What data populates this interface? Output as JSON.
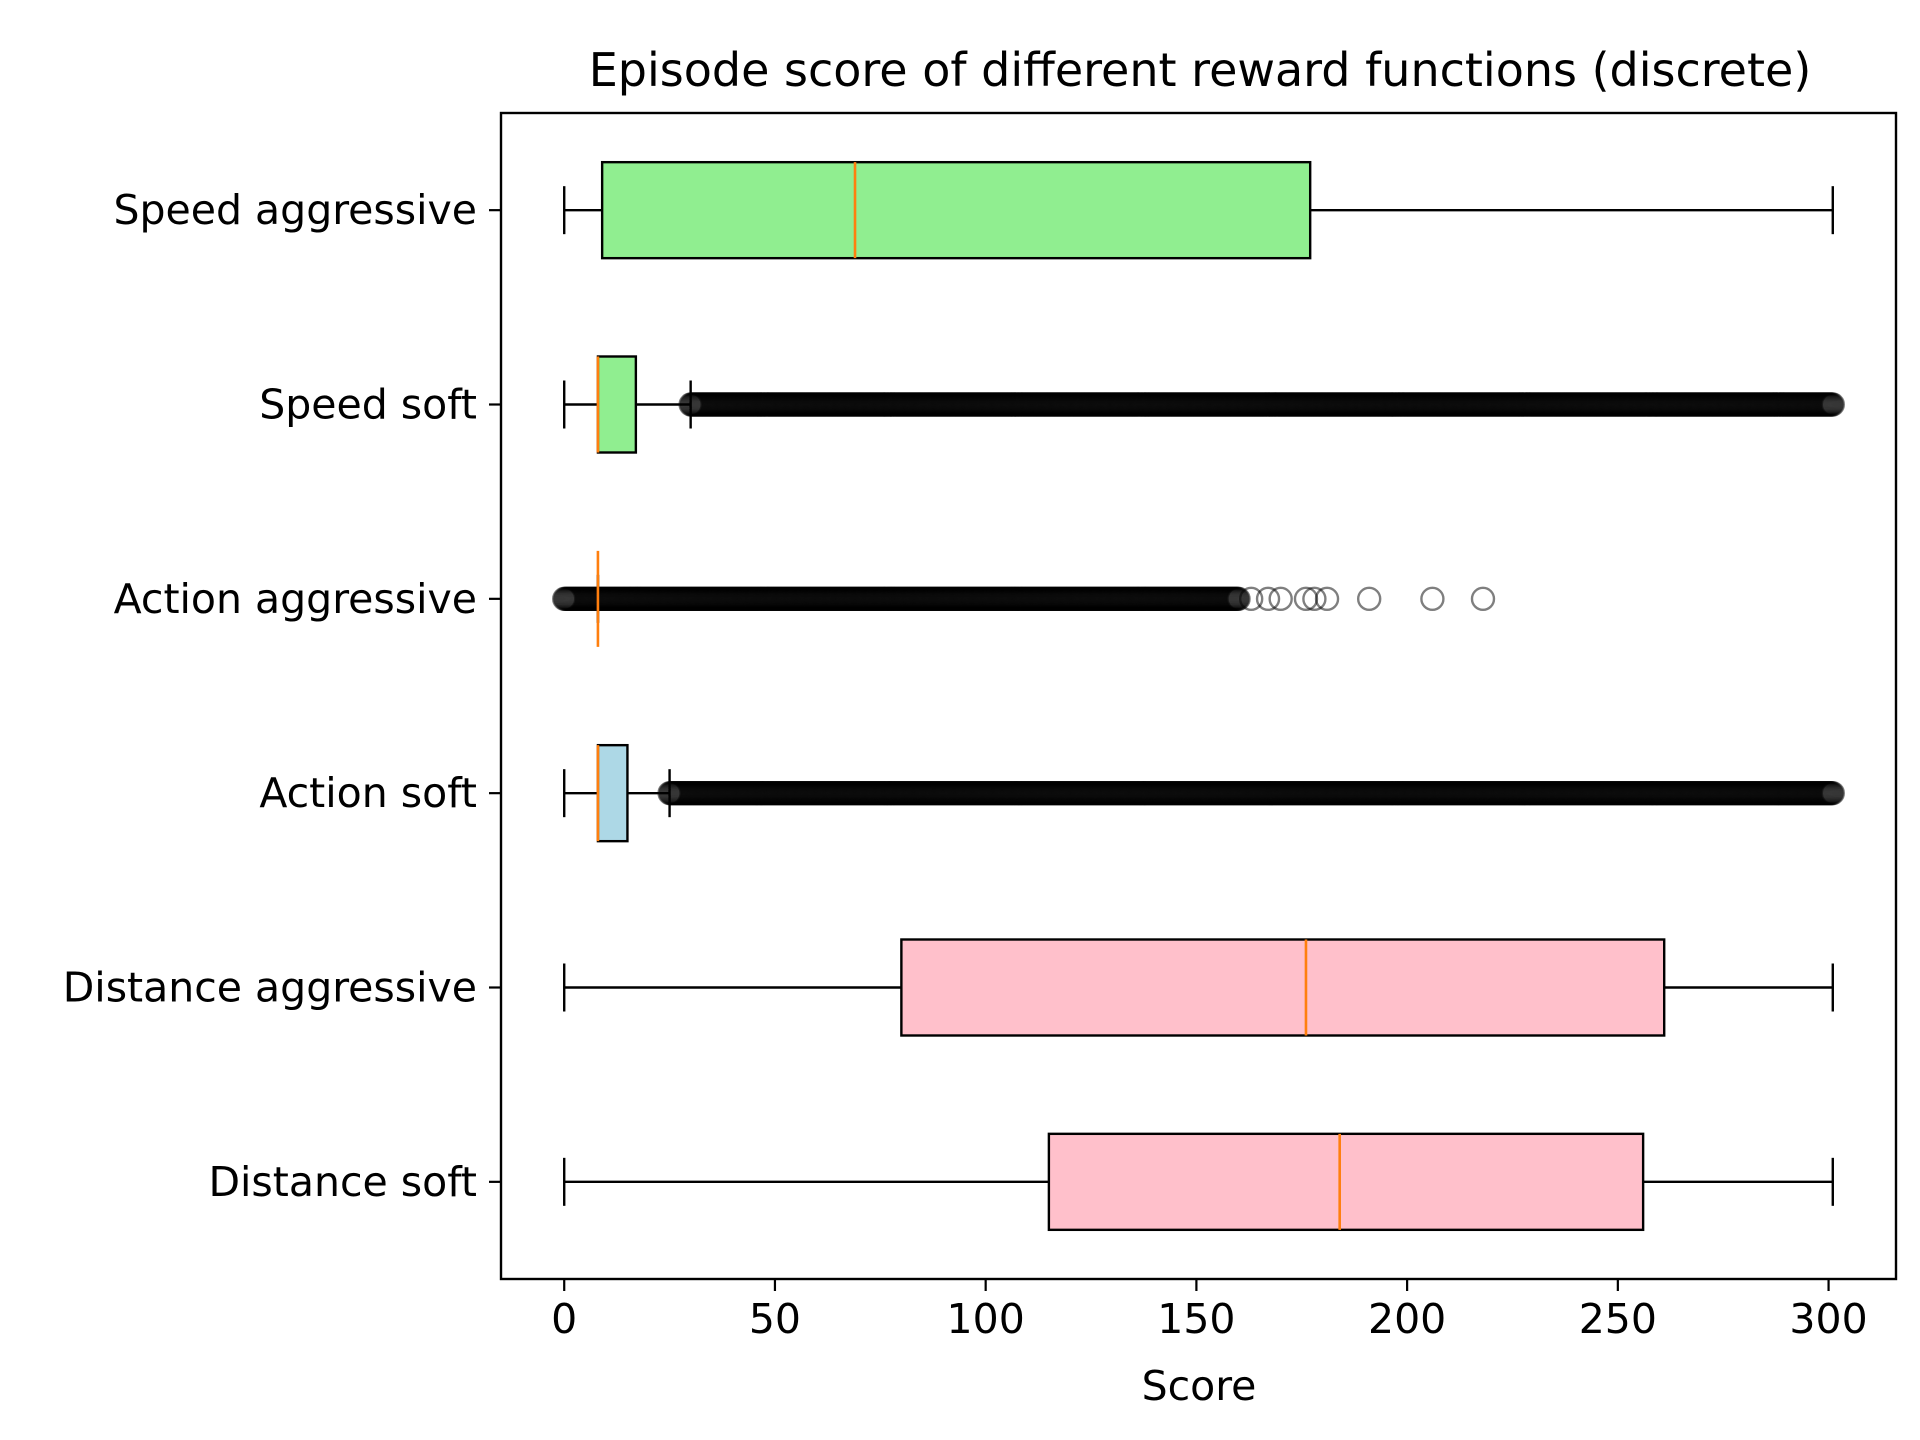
{
  "chart_data": {
    "type": "boxplot",
    "orientation": "horizontal",
    "title": "Episode score of different reward functions (discrete)",
    "xlabel": "Score",
    "ylabel": "",
    "xlim": [
      -15,
      316
    ],
    "xticks": [
      0,
      50,
      100,
      150,
      200,
      250,
      300
    ],
    "xtick_labels": [
      "0",
      "50",
      "100",
      "150",
      "200",
      "250",
      "300"
    ],
    "grid": false,
    "legend": "none",
    "colors": {
      "green": "#90ee90",
      "blue": "#add8e6",
      "pink": "#ffc0cb",
      "median": "#ff7f0e",
      "edge": "#000000",
      "flier": "#000000"
    },
    "categories": [
      "Speed aggressive",
      "Speed soft",
      "Action aggressive",
      "Action soft",
      "Distance aggressive",
      "Distance soft"
    ],
    "series": [
      {
        "name": "Speed aggressive",
        "whisker_low": 0,
        "q1": 9,
        "median": 69,
        "q3": 177,
        "whisker_high": 301,
        "color": "green",
        "fliers_dense_from": null,
        "fliers_dense_to": null,
        "fliers_sparse": []
      },
      {
        "name": "Speed soft",
        "whisker_low": 0,
        "q1": 8,
        "median": 8,
        "q3": 17,
        "whisker_high": 30,
        "color": "green",
        "fliers_dense_from": 30,
        "fliers_dense_to": 301,
        "fliers_sparse": []
      },
      {
        "name": "Action aggressive",
        "whisker_low": 8,
        "q1": 8,
        "median": 8,
        "q3": 8,
        "whisker_high": 8,
        "color": "blue",
        "fliers_dense_from": 0,
        "fliers_dense_to": 160,
        "fliers_sparse": [
          163,
          167,
          170,
          176,
          178,
          181,
          191,
          206,
          218
        ]
      },
      {
        "name": "Action soft",
        "whisker_low": 0,
        "q1": 8,
        "median": 8,
        "q3": 15,
        "whisker_high": 25,
        "color": "blue",
        "fliers_dense_from": 25,
        "fliers_dense_to": 301,
        "fliers_sparse": []
      },
      {
        "name": "Distance aggressive",
        "whisker_low": 0,
        "q1": 80,
        "median": 176,
        "q3": 261,
        "whisker_high": 301,
        "color": "pink",
        "fliers_dense_from": null,
        "fliers_dense_to": null,
        "fliers_sparse": []
      },
      {
        "name": "Distance soft",
        "whisker_low": 0,
        "q1": 115,
        "median": 184,
        "q3": 256,
        "whisker_high": 301,
        "color": "pink",
        "fliers_dense_from": null,
        "fliers_dense_to": null,
        "fliers_sparse": []
      }
    ]
  }
}
